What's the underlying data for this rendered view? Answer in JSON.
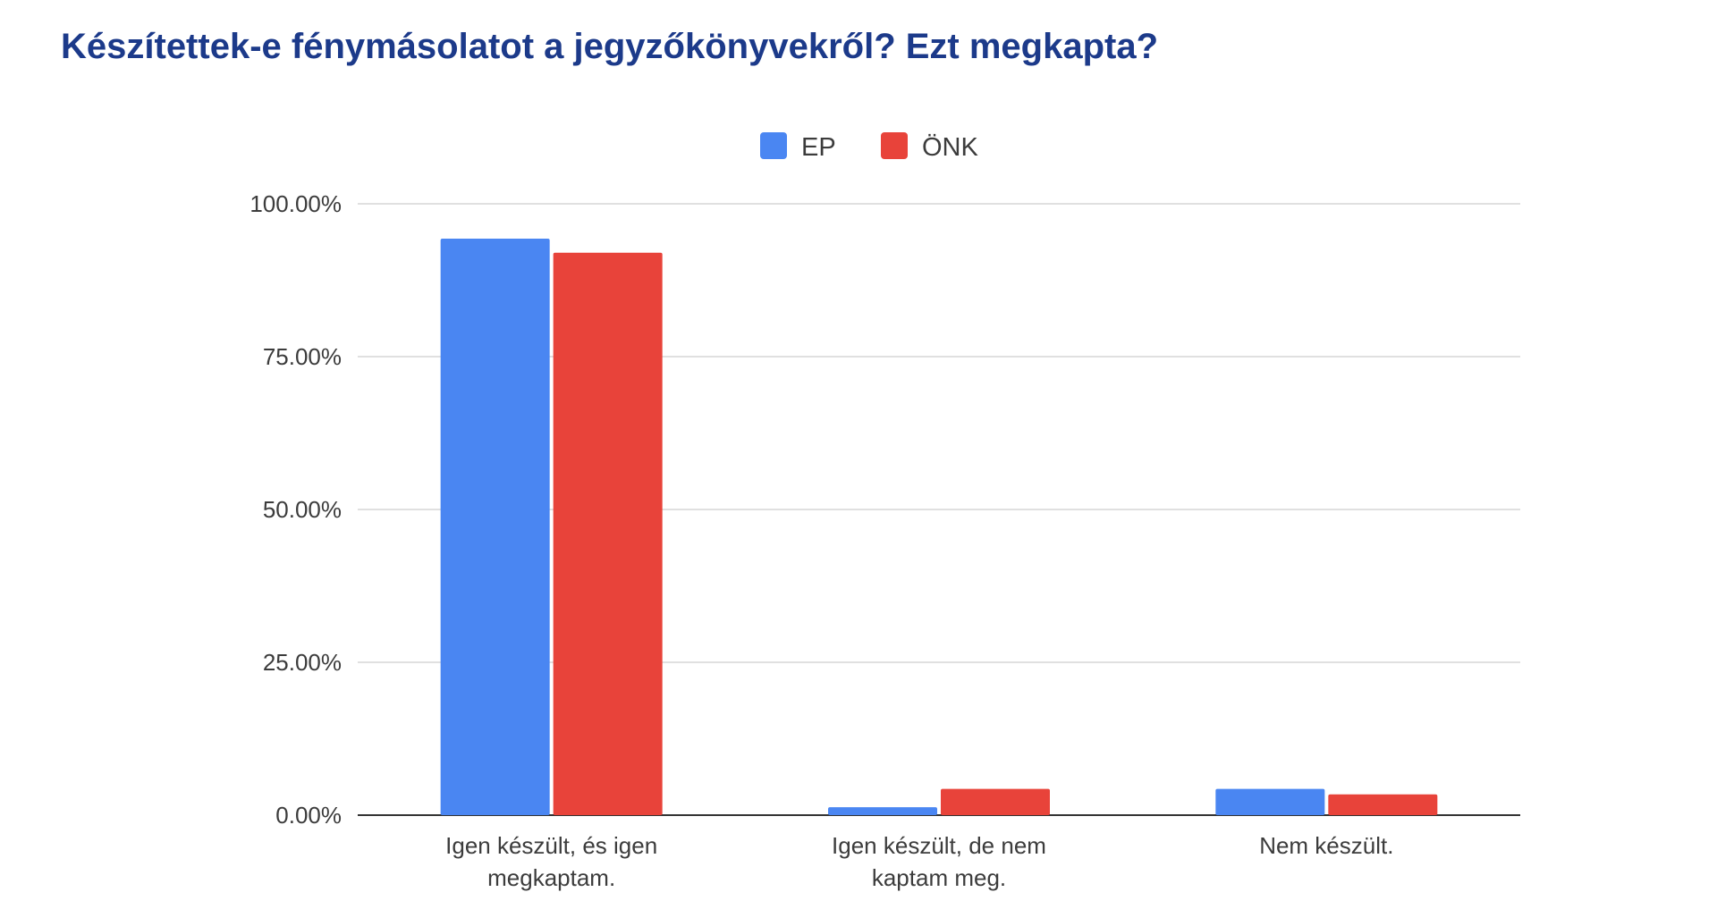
{
  "chart_data": {
    "type": "bar",
    "title": "Készítettek-e fénymásolatot a jegyzőkönyvekről? Ezt megkapta?",
    "categories": [
      [
        "Igen készült, és igen",
        "megkaptam."
      ],
      [
        "Igen készült, de nem",
        "kaptam meg."
      ],
      [
        "Nem készült."
      ]
    ],
    "series": [
      {
        "name": "EP",
        "color": "#4a86f2",
        "values": [
          94.3,
          1.3,
          4.3
        ]
      },
      {
        "name": "ÖNK",
        "color": "#e8433a",
        "values": [
          92.0,
          4.3,
          3.4
        ]
      }
    ],
    "y_ticks": [
      "0.00%",
      "25.00%",
      "50.00%",
      "75.00%",
      "100.00%"
    ],
    "ylim": [
      0,
      100
    ],
    "grid": true,
    "legend_position": "top-center",
    "xlabel": "",
    "ylabel": ""
  }
}
